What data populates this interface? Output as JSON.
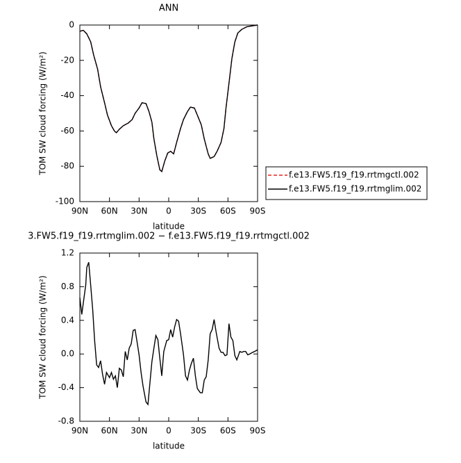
{
  "chart_data": [
    {
      "type": "line",
      "title": "ANN",
      "xlabel": "latitude",
      "ylabel": "TOM SW cloud forcing (W/m²)",
      "xlim": [
        90,
        -90
      ],
      "ylim": [
        -100,
        0
      ],
      "xticks": [
        {
          "value": 90,
          "label": "90N"
        },
        {
          "value": 60,
          "label": "60N"
        },
        {
          "value": 30,
          "label": "30N"
        },
        0,
        {
          "value": -30,
          "label": "30S"
        },
        {
          "value": -60,
          "label": "60S"
        },
        {
          "value": -90,
          "label": "90S"
        }
      ],
      "yticks": [
        0,
        -20,
        -40,
        -60,
        -80,
        -100
      ],
      "x": [
        90,
        86.5,
        83,
        79,
        76,
        72,
        69,
        65,
        62,
        58,
        55,
        53,
        50,
        46,
        41,
        37,
        34,
        30,
        27,
        23,
        20,
        17,
        15,
        12,
        9,
        7,
        4,
        1,
        -2,
        -5,
        -8,
        -12,
        -15,
        -19,
        -22,
        -26,
        -29,
        -33,
        -36,
        -40,
        -42,
        -46,
        -49,
        -53,
        -56,
        -58,
        -61,
        -64,
        -67,
        -70,
        -74,
        -79,
        -84,
        -90
      ],
      "series": [
        {
          "name": "f.e13.FW5.f19_f19.rrtmgctl.002",
          "color": "#e8231e",
          "dash": true,
          "values": [
            -3.5,
            -3,
            -5,
            -9.5,
            -17,
            -25,
            -35,
            -44,
            -51,
            -57,
            -60,
            -61,
            -59,
            -57,
            -55.5,
            -53.5,
            -50,
            -47,
            -44,
            -44.5,
            -49,
            -55,
            -64.5,
            -74,
            -82,
            -83,
            -77,
            -72.5,
            -71.5,
            -73,
            -66.5,
            -58.5,
            -53.5,
            -49,
            -46.5,
            -47,
            -51,
            -56.5,
            -64.5,
            -73,
            -75.5,
            -74.5,
            -71.5,
            -66.5,
            -58.5,
            -47,
            -33,
            -19,
            -9.5,
            -4.5,
            -2.5,
            -1,
            -0.5,
            0
          ]
        },
        {
          "name": "f.e13.FW5.f19_f19.rrtmglim.002",
          "color": "#000000",
          "dash": false,
          "values": [
            -3.5,
            -3,
            -5,
            -9.5,
            -17,
            -25,
            -35,
            -44,
            -51,
            -57,
            -60,
            -61,
            -59,
            -57,
            -55.5,
            -53.5,
            -50,
            -47,
            -44,
            -44.5,
            -49,
            -55,
            -64.5,
            -74,
            -82,
            -83,
            -77,
            -72.5,
            -71.5,
            -73,
            -66.5,
            -58.5,
            -53.5,
            -49,
            -46.5,
            -47,
            -51,
            -56.5,
            -64.5,
            -73,
            -75.5,
            -74.5,
            -71.5,
            -66.5,
            -58.5,
            -47,
            -33,
            -19,
            -9.5,
            -4.5,
            -2.5,
            -1,
            -0.5,
            0
          ]
        }
      ]
    },
    {
      "type": "line",
      "title": "3.FW5.f19_f19.rrtmglim.002 − f.e13.FW5.f19_f19.rrtmgctl.002",
      "xlabel": "latitude",
      "ylabel": "TOM SW cloud forcing (W/m²)",
      "xlim": [
        90,
        -90
      ],
      "ylim": [
        -0.8,
        1.2
      ],
      "xticks": [
        {
          "value": 90,
          "label": "90N"
        },
        {
          "value": 60,
          "label": "60N"
        },
        {
          "value": 30,
          "label": "30N"
        },
        0,
        {
          "value": -30,
          "label": "30S"
        },
        {
          "value": -60,
          "label": "60S"
        },
        {
          "value": -90,
          "label": "90S"
        }
      ],
      "yticks": [
        1.2,
        0.8,
        0.4,
        {
          "value": 0,
          "label": "0.0"
        },
        -0.4,
        -0.8
      ],
      "x": [
        90,
        88,
        86,
        84,
        83,
        81,
        79,
        77,
        75,
        73,
        71,
        69,
        67,
        65,
        63,
        60,
        58,
        56,
        54,
        52,
        50,
        48,
        46,
        44,
        42,
        40,
        38,
        36,
        34,
        32,
        30,
        28,
        26,
        23,
        21,
        19,
        17,
        15,
        13,
        11,
        9,
        7,
        5,
        2,
        0,
        -2,
        -4,
        -6,
        -8,
        -10,
        -12,
        -15,
        -17,
        -19,
        -21,
        -23,
        -25,
        -27,
        -29,
        -32,
        -34,
        -36,
        -38,
        -40,
        -42,
        -44,
        -46,
        -48,
        -51,
        -53,
        -55,
        -57,
        -59,
        -61,
        -63,
        -65,
        -67,
        -69,
        -72,
        -74,
        -76,
        -78,
        -80,
        -82,
        -85,
        -87,
        -90
      ],
      "series": [
        {
          "color": "#000000",
          "dash": false,
          "values": [
            0.67,
            0.47,
            0.65,
            0.82,
            1.03,
            1.09,
            0.82,
            0.53,
            0.16,
            -0.13,
            -0.16,
            -0.08,
            -0.24,
            -0.36,
            -0.22,
            -0.28,
            -0.22,
            -0.3,
            -0.26,
            -0.4,
            -0.17,
            -0.19,
            -0.27,
            0.03,
            -0.07,
            0.07,
            0.12,
            0.28,
            0.29,
            0.14,
            -0.01,
            -0.22,
            -0.38,
            -0.57,
            -0.6,
            -0.34,
            -0.09,
            0.07,
            0.22,
            0.17,
            -0.05,
            -0.26,
            0.03,
            0.16,
            0.17,
            0.29,
            0.2,
            0.32,
            0.41,
            0.39,
            0.24,
            -0.01,
            -0.26,
            -0.31,
            -0.19,
            -0.11,
            -0.05,
            -0.26,
            -0.41,
            -0.46,
            -0.46,
            -0.31,
            -0.27,
            -0.07,
            0.24,
            0.29,
            0.41,
            0.26,
            0.07,
            0.02,
            0.02,
            -0.02,
            -0.01,
            0.36,
            0.2,
            0.16,
            -0.02,
            -0.07,
            0.03,
            0.02,
            0.03,
            0.03,
            -0.01,
            0,
            0.02,
            0.03,
            0.05
          ]
        }
      ]
    }
  ]
}
